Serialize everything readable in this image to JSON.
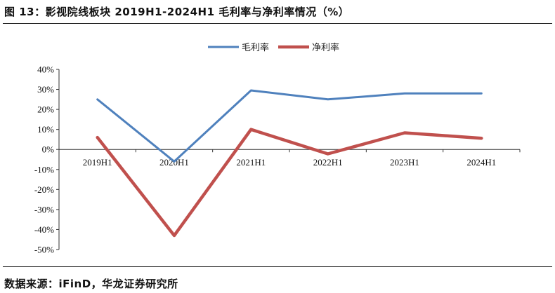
{
  "title": "图 13：影视院线板块 2019H1-2024H1 毛利率与净利率情况（%）",
  "source": "数据来源：iFinD，华龙证券研究所",
  "chart_data": {
    "type": "line",
    "categories": [
      "2019H1",
      "2020H1",
      "2021H1",
      "2022H1",
      "2023H1",
      "2024H1"
    ],
    "series": [
      {
        "name": "毛利率",
        "color": "#4f81bd",
        "values": [
          25,
          -6,
          29.5,
          25,
          28,
          28
        ]
      },
      {
        "name": "净利率",
        "color": "#c0504d",
        "values": [
          6,
          -43,
          10,
          -2.2,
          8.3,
          5.6
        ]
      }
    ],
    "ylim": [
      -50,
      40
    ],
    "yticks": [
      40,
      30,
      20,
      10,
      0,
      -10,
      -20,
      -30,
      -40,
      -50
    ],
    "ytick_format": "%",
    "legend_position": "top-center",
    "grid": false
  }
}
